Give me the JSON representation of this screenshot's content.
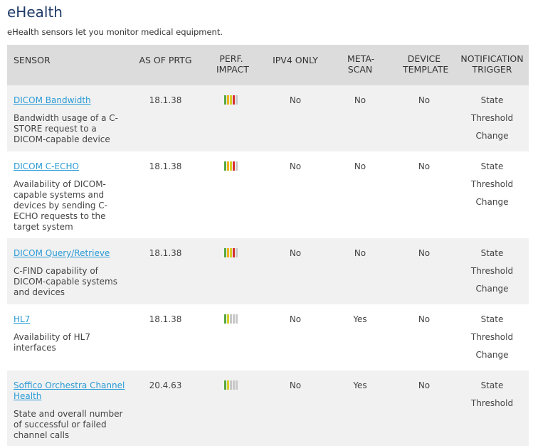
{
  "header": {
    "title": "eHealth",
    "subtitle": "eHealth sensors let you monitor medical equipment."
  },
  "table": {
    "columns": [
      "SENSOR",
      "AS OF PRTG",
      "PERF. IMPACT",
      "IPV4 ONLY",
      "META-SCAN",
      "DEVICE TEMPLATE",
      "NOTIFICATION TRIGGER"
    ],
    "rows": [
      {
        "name": "DICOM Bandwidth",
        "description": "Bandwidth usage of a C-STORE request to a DICOM-capable device",
        "version": "18.1.38",
        "ipv4_only": "No",
        "meta_scan": "No",
        "device_template": "No",
        "triggers": [
          "State",
          "Threshold",
          "Change"
        ]
      },
      {
        "name": "DICOM C-ECHO",
        "description": "Availability of DICOM-capable systems and devices by sending C-ECHO requests to the target system",
        "version": "18.1.38",
        "ipv4_only": "No",
        "meta_scan": "No",
        "device_template": "No",
        "triggers": [
          "State",
          "Threshold",
          "Change"
        ]
      },
      {
        "name": "DICOM Query/Retrieve",
        "description": "C-FIND capability of DICOM-capable systems and devices",
        "version": "18.1.38",
        "ipv4_only": "No",
        "meta_scan": "No",
        "device_template": "No",
        "triggers": [
          "State",
          "Threshold",
          "Change"
        ]
      },
      {
        "name": "HL7",
        "description": "Availability of HL7 interfaces",
        "version": "18.1.38",
        "ipv4_only": "No",
        "meta_scan": "Yes",
        "device_template": "No",
        "triggers": [
          "State",
          "Threshold",
          "Change"
        ]
      },
      {
        "name": "Soffico Orchestra Channel Health",
        "description": "State and overall number of successful or failed channel calls",
        "version": "20.4.63",
        "ipv4_only": "No",
        "meta_scan": "Yes",
        "device_template": "No",
        "triggers": [
          "State",
          "Threshold"
        ]
      }
    ]
  }
}
